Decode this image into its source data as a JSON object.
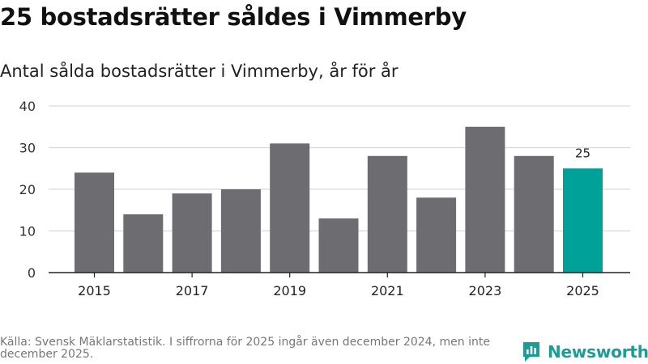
{
  "title": "25 bostadsrätter såldes i Vimmerby",
  "subtitle": "Antal sålda bostadsrätter i Vimmerby, år för år",
  "footer": {
    "source": "Källa: Svensk Mäklarstatistik. I siffrorna för 2025 ingår även december 2024, men inte december 2025."
  },
  "brand": {
    "name": "Newsworthy",
    "icon": "newsworthy-logo-icon"
  },
  "colors": {
    "bar": "#6d6c70",
    "highlight": "#00a198",
    "grid": "#d9d9d9",
    "axis": "#222222",
    "brand": "#1a9d96"
  },
  "chart_data": {
    "type": "bar",
    "title": "Antal sålda bostadsrätter i Vimmerby, år för år",
    "xlabel": "",
    "ylabel": "",
    "ylim": [
      0,
      40
    ],
    "yticks": [
      0,
      10,
      20,
      30,
      40
    ],
    "categories": [
      "2015",
      "2016",
      "2017",
      "2018",
      "2019",
      "2020",
      "2021",
      "2022",
      "2023",
      "2024",
      "2025"
    ],
    "xtick_labels": [
      "2015",
      "2017",
      "2019",
      "2021",
      "2023",
      "2025"
    ],
    "values": [
      24,
      14,
      19,
      20,
      31,
      13,
      28,
      18,
      35,
      28,
      25
    ],
    "highlight_category": "2025",
    "annotations": [
      {
        "category": "2025",
        "text": "25"
      }
    ],
    "grid": true,
    "legend": "none"
  }
}
